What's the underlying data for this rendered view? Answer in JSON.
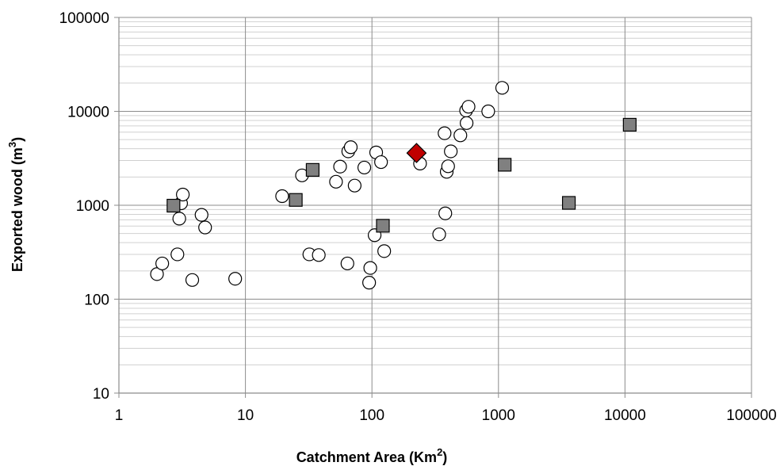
{
  "chart_data": {
    "type": "scatter",
    "xlabel": "Catchment Area (Km",
    "xlabel_sup": "2",
    "xlabel_suffix": ")",
    "ylabel": "Exported wood (m",
    "ylabel_sup": "3",
    "ylabel_suffix": ")",
    "x_scale": "log",
    "y_scale": "log",
    "xlim": [
      1,
      100000
    ],
    "ylim": [
      10,
      100000
    ],
    "x_ticks": [
      "1",
      "10",
      "100",
      "1000",
      "10000",
      "100000"
    ],
    "y_ticks": [
      "10",
      "100",
      "1000",
      "10000",
      "100000"
    ],
    "grid": {
      "major": true,
      "minor_y": true
    },
    "legend": "none",
    "series": [
      {
        "marker": "circle",
        "fill": "#ffffff",
        "points": [
          [
            2.0,
            185
          ],
          [
            2.2,
            240
          ],
          [
            2.9,
            300
          ],
          [
            3.0,
            720
          ],
          [
            3.1,
            1050
          ],
          [
            3.2,
            1300
          ],
          [
            3.8,
            160
          ],
          [
            4.5,
            790
          ],
          [
            4.8,
            580
          ],
          [
            8.3,
            165
          ],
          [
            19.5,
            1250
          ],
          [
            28,
            2080
          ],
          [
            32,
            300
          ],
          [
            38,
            295
          ],
          [
            52,
            1780
          ],
          [
            56,
            2580
          ],
          [
            64,
            240
          ],
          [
            65,
            3750
          ],
          [
            68,
            4150
          ],
          [
            73,
            1620
          ],
          [
            87,
            2520
          ],
          [
            95,
            150
          ],
          [
            97,
            215
          ],
          [
            105,
            480
          ],
          [
            108,
            3650
          ],
          [
            118,
            2880
          ],
          [
            125,
            325
          ],
          [
            240,
            2780
          ],
          [
            340,
            490
          ],
          [
            375,
            5850
          ],
          [
            380,
            820
          ],
          [
            390,
            2270
          ],
          [
            400,
            2600
          ],
          [
            420,
            3750
          ],
          [
            500,
            5550
          ],
          [
            555,
            10200
          ],
          [
            560,
            7500
          ],
          [
            580,
            11200
          ],
          [
            830,
            10000
          ],
          [
            1070,
            17800
          ]
        ]
      },
      {
        "marker": "square",
        "fill": "#808080",
        "points": [
          [
            2.7,
            990
          ],
          [
            25,
            1140
          ],
          [
            34,
            2380
          ],
          [
            122,
            605
          ],
          [
            1120,
            2700
          ],
          [
            3600,
            1060
          ],
          [
            10900,
            7200
          ]
        ]
      },
      {
        "marker": "diamond",
        "fill": "#c00000",
        "points": [
          [
            225,
            3600
          ]
        ]
      }
    ]
  }
}
